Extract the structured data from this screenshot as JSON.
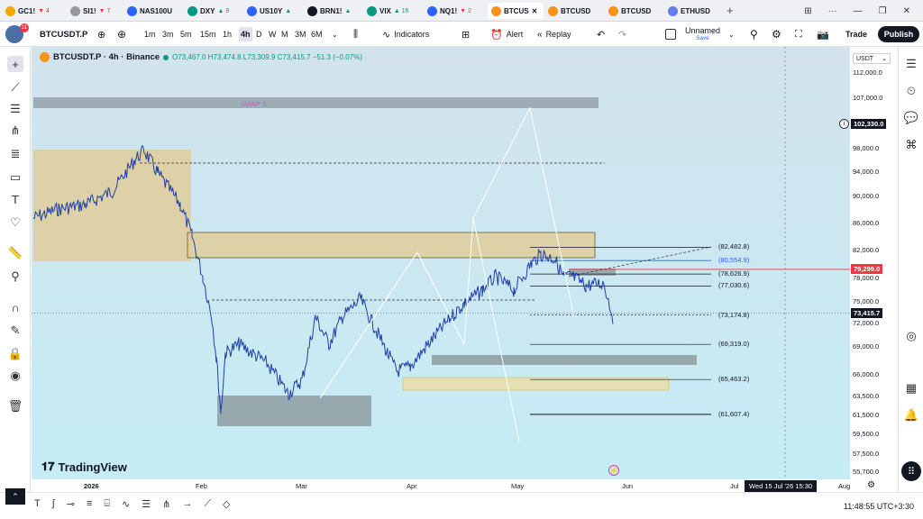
{
  "tabs": [
    {
      "label": "GC1!",
      "change": "▼ 4",
      "color": "#f7a600",
      "change_color": "#f23645",
      "x": 6
    },
    {
      "label": "SI1!",
      "change": "▼ 7",
      "color": "#9598a1",
      "change_color": "#f23645",
      "x": 78
    },
    {
      "label": "NAS100U",
      "change": "",
      "color": "#2962ff",
      "x": 141
    },
    {
      "label": "DXY",
      "change": "▲ 9",
      "color": "#089981",
      "change_color": "#089981",
      "x": 208
    },
    {
      "label": "US10Y",
      "change": "▲",
      "color": "#2962ff",
      "change_color": "#089981",
      "x": 274
    },
    {
      "label": "BRN1!",
      "change": "▲",
      "color": "#131722",
      "change_color": "#089981",
      "x": 341
    },
    {
      "label": "VIX",
      "change": "▲ 16",
      "color": "#089981",
      "change_color": "#089981",
      "x": 407
    },
    {
      "label": "NQ1!",
      "change": "▼ 2",
      "color": "#2962ff",
      "change_color": "#f23645",
      "x": 474
    },
    {
      "label": "BTCUS",
      "change": "",
      "color": "#f7931a",
      "x": 541,
      "active": true
    },
    {
      "label": "BTCUSD",
      "change": "",
      "color": "#f7931a",
      "x": 608
    },
    {
      "label": "BTCUSD",
      "change": "",
      "color": "#f7931a",
      "x": 675
    },
    {
      "label": "ETHUSD",
      "change": "",
      "color": "#627eea",
      "x": 741
    }
  ],
  "toolbar": {
    "symbol": "BTCUSDT.P",
    "intervals": [
      "1m",
      "3m",
      "5m",
      "15m",
      "1h",
      "4h",
      "D",
      "W",
      "M",
      "3M",
      "6M"
    ],
    "active_interval": "4h",
    "indicators_label": "Indicators",
    "alert_label": "Alert",
    "replay_label": "Replay",
    "layout_name": "Unnamed",
    "layout_status": "Save",
    "trade_label": "Trade",
    "publish_label": "Publish"
  },
  "legend": {
    "title": "BTCUSDT.P · 4h · Binance",
    "ohlc": "O73,467.0 H73,474.8 L73,309.9 C73,415.7 −51.3 (−0.07%)"
  },
  "price_axis": {
    "currency": "USDT",
    "labels": [
      "112,000.0",
      "107,000.0",
      "98,000.0",
      "94,000.0",
      "90,000.0",
      "86,000.0",
      "82,000.0",
      "78,000.0",
      "75,000.0",
      "72,000.0",
      "69,000.0",
      "66,000.0",
      "63,500.0",
      "61,500.0",
      "59,500.0",
      "57,500.0",
      "55,700.0"
    ],
    "tags": [
      {
        "value": "102,330.0",
        "color": "#131722"
      },
      {
        "value": "79,299.0",
        "color": "#f23645"
      },
      {
        "value": "73,415.7",
        "color": "#131722"
      }
    ]
  },
  "levels": [
    "(82,482.8)",
    "(80,554.9)",
    "(78,626.9)",
    "(77,030.6)",
    "(73,174.8)",
    "(69,319.0)",
    "(65,463.2)",
    "(61,607.4)"
  ],
  "zone_label": "SWAP S",
  "time_axis": {
    "labels": [
      "2026",
      "Feb",
      "Mar",
      "Apr",
      "May",
      "Jun",
      "Jul",
      "Aug"
    ],
    "crosshair": "Wed 15 Jul '26   15:30"
  },
  "watermark": "TradingView",
  "status": {
    "clock": "11:48:55 UTC+3:30"
  },
  "colors": {
    "background_top": "#cfe6ee",
    "background_bottom": "#c6ecf5",
    "candle": "#1e3fa8",
    "zone_tan": "#e3c98f",
    "zone_gray": "#8e9ba1"
  }
}
